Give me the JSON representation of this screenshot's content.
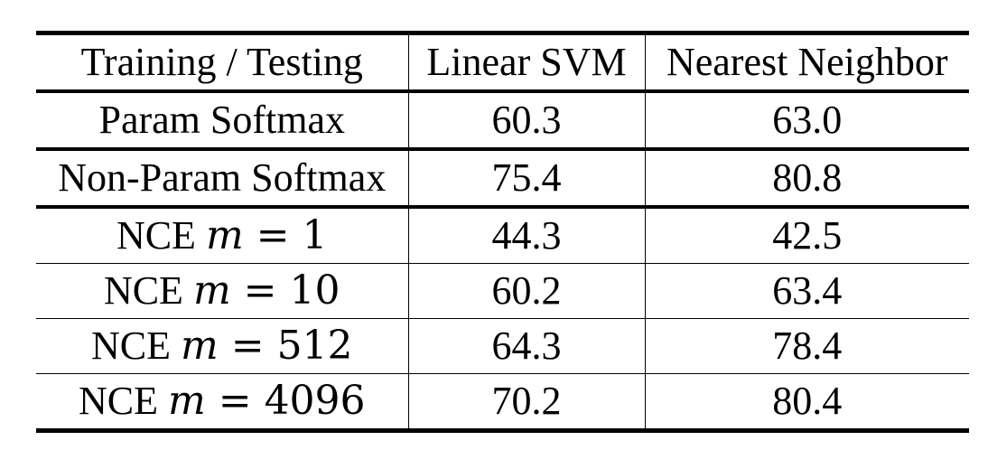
{
  "table": {
    "headers": [
      "Training / Testing",
      "Linear SVM",
      "Nearest Neighbor"
    ],
    "rows": [
      {
        "method": "Param Softmax",
        "linear_svm": "60.3",
        "nearest_neighbor": "63.0"
      },
      {
        "method": "Non-Param Softmax",
        "linear_svm": "75.4",
        "nearest_neighbor": "80.8"
      },
      {
        "method_prefix": "NCE",
        "method_var": "m",
        "method_op": "=",
        "method_value": "1",
        "linear_svm": "44.3",
        "nearest_neighbor": "42.5"
      },
      {
        "method_prefix": "NCE",
        "method_var": "m",
        "method_op": "=",
        "method_value": "10",
        "linear_svm": "60.2",
        "nearest_neighbor": "63.4"
      },
      {
        "method_prefix": "NCE",
        "method_var": "m",
        "method_op": "=",
        "method_value": "512",
        "linear_svm": "64.3",
        "nearest_neighbor": "78.4"
      },
      {
        "method_prefix": "NCE",
        "method_var": "m",
        "method_op": "=",
        "method_value": "4096",
        "linear_svm": "70.2",
        "nearest_neighbor": "80.4"
      }
    ]
  }
}
